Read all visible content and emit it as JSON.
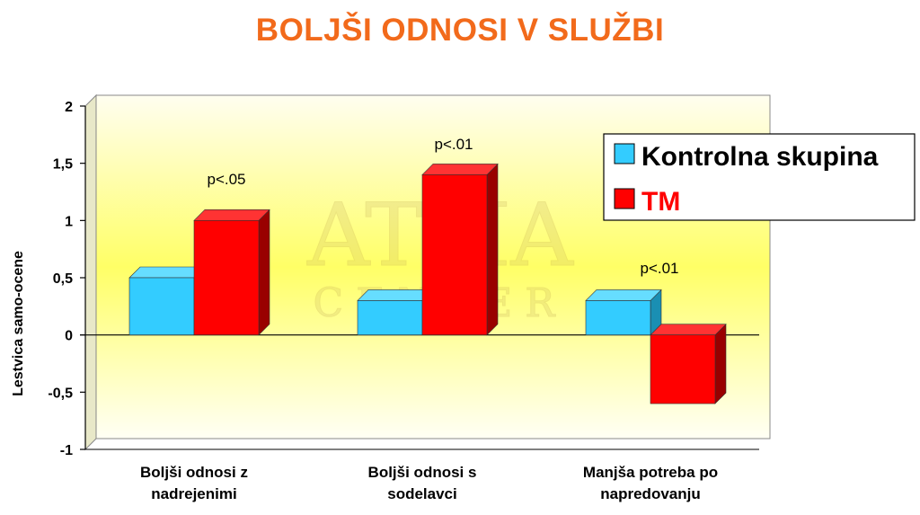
{
  "title": "BOLJŠI ODNOSI V SLUŽBI",
  "colors": {
    "title": "#f26a1b",
    "series_front": [
      "#33ccff",
      "#ff0000"
    ],
    "series_top": [
      "#66ddff",
      "#ff3333"
    ],
    "series_side": [
      "#1a8fb3",
      "#990000"
    ],
    "plot_bg_top": "#fffef0",
    "plot_bg_mid": "#ffff66",
    "plot_bg_bottom": "#fffff5"
  },
  "watermark": {
    "line1": "ATMA",
    "line2": "CENTER"
  },
  "chart_data": {
    "type": "bar",
    "ylabel": "Lestvica samo-ocene",
    "ylim": [
      -1,
      2
    ],
    "yticks": [
      "2",
      "1,5",
      "1",
      "0,5",
      "0",
      "-0,5",
      "-1"
    ],
    "ytick_values": [
      2,
      1.5,
      1,
      0.5,
      0,
      -0.5,
      -1
    ],
    "categories": [
      [
        "Boljši odnosi z",
        "nadrejenimi"
      ],
      [
        "Boljši odnosi s",
        "sodelavci"
      ],
      [
        "Manjša potreba po",
        "napredovanju"
      ]
    ],
    "series": [
      {
        "name": "Kontrolna skupina",
        "values": [
          0.5,
          0.3,
          0.3
        ]
      },
      {
        "name": "TM",
        "values": [
          1.0,
          1.4,
          -0.6
        ]
      }
    ],
    "annotations": [
      "p<.05",
      "p<.01",
      "p<.01"
    ],
    "legend_position": "top-right"
  }
}
